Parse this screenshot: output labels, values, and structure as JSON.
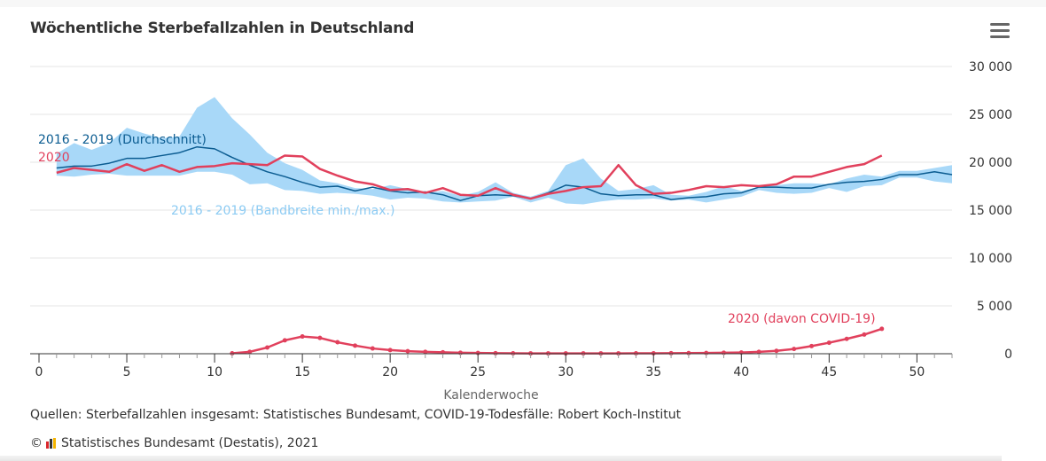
{
  "title": "Wöchentliche Sterbefallzahlen in Deutschland",
  "menu": {
    "icon": "hamburger-menu-icon",
    "label": "Chart context menu"
  },
  "chart_data": {
    "type": "line",
    "title": "Wöchentliche Sterbefallzahlen in Deutschland",
    "xlabel": "Kalenderwoche",
    "ylabel": "",
    "xlim": [
      0,
      52
    ],
    "ylim": [
      0,
      30000
    ],
    "x_ticks": [
      0,
      5,
      10,
      15,
      20,
      25,
      30,
      35,
      40,
      45,
      50
    ],
    "y_ticks": [
      0,
      5000,
      10000,
      15000,
      20000,
      25000,
      30000
    ],
    "y_tick_labels": [
      "0",
      "5 000",
      "10 000",
      "15 000",
      "20 000",
      "25 000",
      "30 000"
    ],
    "grid": "horizontal",
    "y_axis_side": "right",
    "series": [
      {
        "name": "2016 - 2019 (Bandbreite min./max.)",
        "type": "arearange",
        "color": "#a8d8f8",
        "label_color": "#8ccbf3",
        "x": [
          1,
          2,
          3,
          4,
          5,
          6,
          7,
          8,
          9,
          10,
          11,
          12,
          13,
          14,
          15,
          16,
          17,
          18,
          19,
          20,
          21,
          22,
          23,
          24,
          25,
          26,
          27,
          28,
          29,
          30,
          31,
          32,
          33,
          34,
          35,
          36,
          37,
          38,
          39,
          40,
          41,
          42,
          43,
          44,
          45,
          46,
          47,
          48,
          49,
          50,
          51,
          52
        ],
        "low": [
          18600,
          18500,
          18700,
          18800,
          18600,
          18600,
          18600,
          18600,
          19000,
          19000,
          18700,
          17700,
          17800,
          17100,
          17000,
          16700,
          16800,
          16700,
          16500,
          16100,
          16300,
          16200,
          15900,
          15800,
          15900,
          16000,
          16400,
          15800,
          16300,
          15700,
          15600,
          15900,
          16100,
          16100,
          16200,
          16000,
          16100,
          15800,
          16100,
          16400,
          17100,
          16800,
          16700,
          16800,
          17300,
          16900,
          17500,
          17600,
          18400,
          18400,
          18000,
          17800
        ],
        "high": [
          20900,
          22000,
          21300,
          22000,
          23600,
          23000,
          22500,
          22700,
          25700,
          26800,
          24600,
          22900,
          21000,
          19900,
          19200,
          18100,
          17800,
          17300,
          17200,
          17600,
          17200,
          16800,
          17000,
          16500,
          16900,
          17900,
          16800,
          16400,
          17000,
          19700,
          20400,
          18300,
          17000,
          17200,
          17600,
          16600,
          16500,
          16900,
          17500,
          17000,
          17400,
          17600,
          17800,
          17800,
          17700,
          18300,
          18700,
          18500,
          19100,
          19100,
          19400,
          19700
        ]
      },
      {
        "name": "2016 - 2019 (Durchschnitt)",
        "color": "#0b5c91",
        "x": [
          1,
          2,
          3,
          4,
          5,
          6,
          7,
          8,
          9,
          10,
          11,
          12,
          13,
          14,
          15,
          16,
          17,
          18,
          19,
          20,
          21,
          22,
          23,
          24,
          25,
          26,
          27,
          28,
          29,
          30,
          31,
          32,
          33,
          34,
          35,
          36,
          37,
          38,
          39,
          40,
          41,
          42,
          43,
          44,
          45,
          46,
          47,
          48,
          49,
          50,
          51,
          52
        ],
        "values": [
          19400,
          19600,
          19600,
          19900,
          20400,
          20400,
          20700,
          21000,
          21600,
          21400,
          20500,
          19700,
          19000,
          18500,
          17900,
          17400,
          17500,
          17000,
          17400,
          17000,
          16800,
          16900,
          16600,
          16000,
          16500,
          16600,
          16500,
          16200,
          16800,
          17600,
          17400,
          16700,
          16500,
          16600,
          16600,
          16100,
          16300,
          16400,
          16700,
          16800,
          17400,
          17400,
          17300,
          17300,
          17700,
          17900,
          18000,
          18200,
          18700,
          18700,
          19000,
          18700
        ]
      },
      {
        "name": "2020",
        "color": "#e1405c",
        "x": [
          1,
          2,
          3,
          4,
          5,
          6,
          7,
          8,
          9,
          10,
          11,
          12,
          13,
          14,
          15,
          16,
          17,
          18,
          19,
          20,
          21,
          22,
          23,
          24,
          25,
          26,
          27,
          28,
          29,
          30,
          31,
          32,
          33,
          34,
          35,
          36,
          37,
          38,
          39,
          40,
          41,
          42,
          43,
          44,
          45,
          46,
          47,
          48
        ],
        "values": [
          18900,
          19400,
          19200,
          19000,
          19800,
          19100,
          19700,
          19000,
          19500,
          19600,
          19900,
          19800,
          19700,
          20700,
          20600,
          19300,
          18600,
          18000,
          17700,
          17100,
          17200,
          16800,
          17300,
          16600,
          16500,
          17300,
          16600,
          16200,
          16700,
          17000,
          17400,
          17500,
          19700,
          17600,
          16700,
          16800,
          17100,
          17500,
          17400,
          17600,
          17500,
          17700,
          18500,
          18500,
          19000,
          19500,
          19800,
          20700
        ]
      },
      {
        "name": "2020 (davon COVID-19)",
        "color": "#e1405c",
        "markers": true,
        "x": [
          11,
          12,
          13,
          14,
          15,
          16,
          17,
          18,
          19,
          20,
          21,
          22,
          23,
          24,
          25,
          26,
          27,
          28,
          29,
          30,
          31,
          32,
          33,
          34,
          35,
          36,
          37,
          38,
          39,
          40,
          41,
          42,
          43,
          44,
          45,
          46,
          47,
          48
        ],
        "values": [
          50,
          200,
          650,
          1400,
          1800,
          1650,
          1200,
          850,
          550,
          380,
          270,
          200,
          150,
          100,
          80,
          60,
          50,
          40,
          40,
          40,
          40,
          40,
          40,
          50,
          50,
          60,
          70,
          80,
          100,
          130,
          200,
          300,
          500,
          800,
          1150,
          1550,
          2000,
          2600
        ]
      }
    ],
    "annotations": [
      {
        "text": "2016 - 2019 (Durchschnitt)",
        "series": "2016 - 2019 (Durchschnitt)"
      },
      {
        "text": "2020",
        "series": "2020"
      },
      {
        "text": "2016 - 2019 (Bandbreite min./max.)",
        "series": "2016 - 2019 (Bandbreite min./max.)"
      },
      {
        "text": "2020 (davon COVID-19)",
        "series": "2020 (davon COVID-19)"
      }
    ]
  },
  "footer": {
    "source": "Quellen: Sterbefallzahlen insgesamt: Statistisches Bundesamt, COVID-19-Todesfälle: Robert Koch-Institut",
    "copyright_symbol": "©",
    "credit": "Statistisches Bundesamt (Destatis), 2021",
    "logo_colors": [
      "#d9262b",
      "#333333",
      "#f5b400"
    ]
  }
}
